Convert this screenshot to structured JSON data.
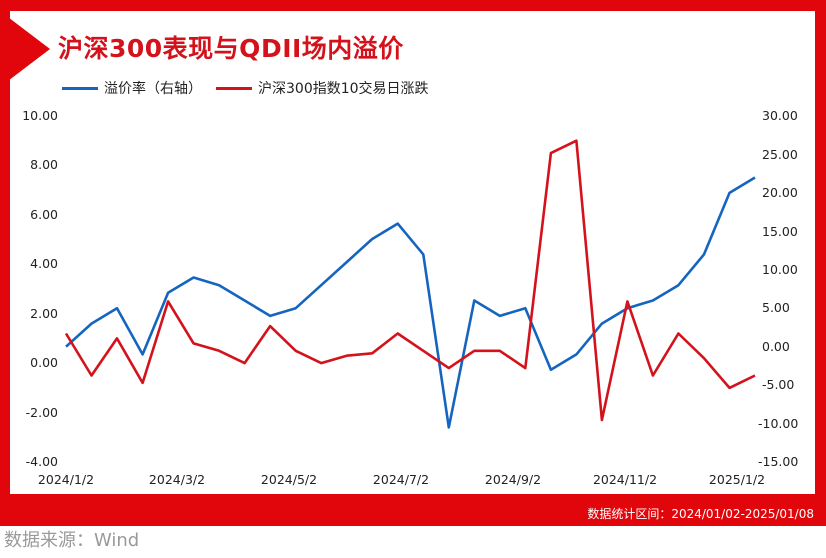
{
  "title": "沪深300表现与QDII场内溢价",
  "legend": [
    {
      "label": "溢价率（右轴）",
      "color": "#1565c0"
    },
    {
      "label": "沪深300指数10交易日涨跌",
      "color": "#d3121b"
    }
  ],
  "left_axis": {
    "ticks": [
      "10.00",
      "8.00",
      "6.00",
      "4.00",
      "2.00",
      "0.00",
      "-2.00",
      "-4.00"
    ]
  },
  "right_axis": {
    "ticks": [
      "30.00",
      "25.00",
      "20.00",
      "15.00",
      "10.00",
      "5.00",
      "0.00",
      "-5.00",
      "-10.00",
      "-15.00"
    ]
  },
  "x_axis": {
    "ticks": [
      "2024/1/2",
      "2024/3/2",
      "2024/5/2",
      "2024/7/2",
      "2024/9/2",
      "2024/11/2",
      "2025/1/2"
    ]
  },
  "range_note": "数据统计区间：2024/01/02-2025/01/08",
  "source": "数据来源：Wind",
  "colors": {
    "frame": "#e0060b",
    "blue": "#1565c0",
    "red": "#d3121b"
  },
  "chart_data": {
    "type": "line",
    "title": "沪深300表现与QDII场内溢价",
    "xlabel": "",
    "ylabel": "",
    "x": [
      "2024/1/2",
      "2024/1/15",
      "2024/2/1",
      "2024/2/20",
      "2024/3/2",
      "2024/3/20",
      "2024/4/5",
      "2024/4/20",
      "2024/5/2",
      "2024/5/20",
      "2024/6/5",
      "2024/6/20",
      "2024/7/2",
      "2024/7/15",
      "2024/7/30",
      "2024/8/10",
      "2024/8/20",
      "2024/9/2",
      "2024/9/15",
      "2024/9/24",
      "2024/10/8",
      "2024/10/20",
      "2024/11/2",
      "2024/11/15",
      "2024/12/1",
      "2024/12/15",
      "2025/1/2",
      "2025/1/8"
    ],
    "series": [
      {
        "name": "溢价率（右轴）",
        "axis": "right",
        "ylim": [
          -15,
          30
        ],
        "values": [
          0,
          3,
          5,
          -1,
          7,
          9,
          8,
          6,
          4,
          5,
          8,
          11,
          14,
          16,
          12,
          -10.5,
          6,
          4,
          5,
          -3,
          -1,
          3,
          5,
          6,
          8,
          12,
          20,
          22
        ]
      },
      {
        "name": "沪深300指数10交易日涨跌",
        "axis": "left",
        "ylim": [
          -4,
          10
        ],
        "values": [
          1.2,
          -0.5,
          1.0,
          -0.8,
          2.5,
          0.8,
          0.5,
          0.0,
          1.5,
          0.5,
          0.0,
          0.3,
          0.4,
          1.2,
          0.5,
          -0.2,
          0.5,
          0.5,
          -0.2,
          8.5,
          9.0,
          -2.3,
          2.5,
          -0.5,
          1.2,
          0.2,
          -1.0,
          -0.5
        ]
      }
    ],
    "left_axis_range": [
      -4,
      10
    ],
    "right_axis_range": [
      -15,
      30
    ],
    "grid": false,
    "legend_position": "top-left"
  }
}
